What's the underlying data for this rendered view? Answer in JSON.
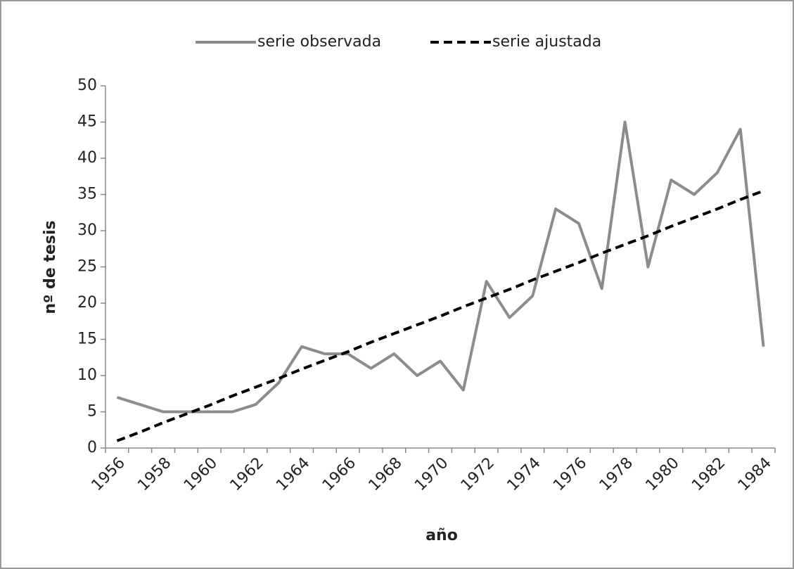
{
  "chart_data": {
    "type": "line",
    "categories": [
      "1956",
      null,
      "1958",
      null,
      "1960",
      null,
      "1962",
      null,
      "1964",
      null,
      "1966",
      null,
      "1968",
      null,
      "1970",
      null,
      "1972",
      null,
      "1974",
      null,
      "1976",
      null,
      "1978",
      null,
      "1980",
      null,
      "1982",
      null,
      "1984"
    ],
    "series": [
      {
        "name": "serie observada",
        "color": "#8c8c8c",
        "dash": false,
        "values": [
          7,
          6,
          5,
          5,
          5,
          5,
          6,
          9,
          14,
          13,
          13,
          11,
          13,
          10,
          12,
          8,
          23,
          18,
          21,
          33,
          31,
          22,
          45,
          25,
          37,
          35,
          38,
          44,
          14
        ]
      },
      {
        "name": "serie ajustada",
        "color": "#000000",
        "dash": true,
        "values": [
          1.0,
          2.2,
          3.5,
          4.7,
          5.9,
          7.2,
          8.4,
          9.6,
          10.9,
          12.1,
          13.3,
          14.6,
          15.8,
          17.0,
          18.2,
          19.5,
          20.7,
          21.9,
          23.2,
          24.4,
          25.6,
          26.9,
          28.1,
          29.3,
          30.6,
          31.8,
          33.0,
          34.3,
          35.5
        ]
      }
    ],
    "xlabel": "año",
    "ylabel": "nº de tesis",
    "ylim": [
      0,
      50
    ],
    "yticks": [
      0,
      5,
      10,
      15,
      20,
      25,
      30,
      35,
      40,
      45,
      50
    ],
    "legend": "top"
  }
}
